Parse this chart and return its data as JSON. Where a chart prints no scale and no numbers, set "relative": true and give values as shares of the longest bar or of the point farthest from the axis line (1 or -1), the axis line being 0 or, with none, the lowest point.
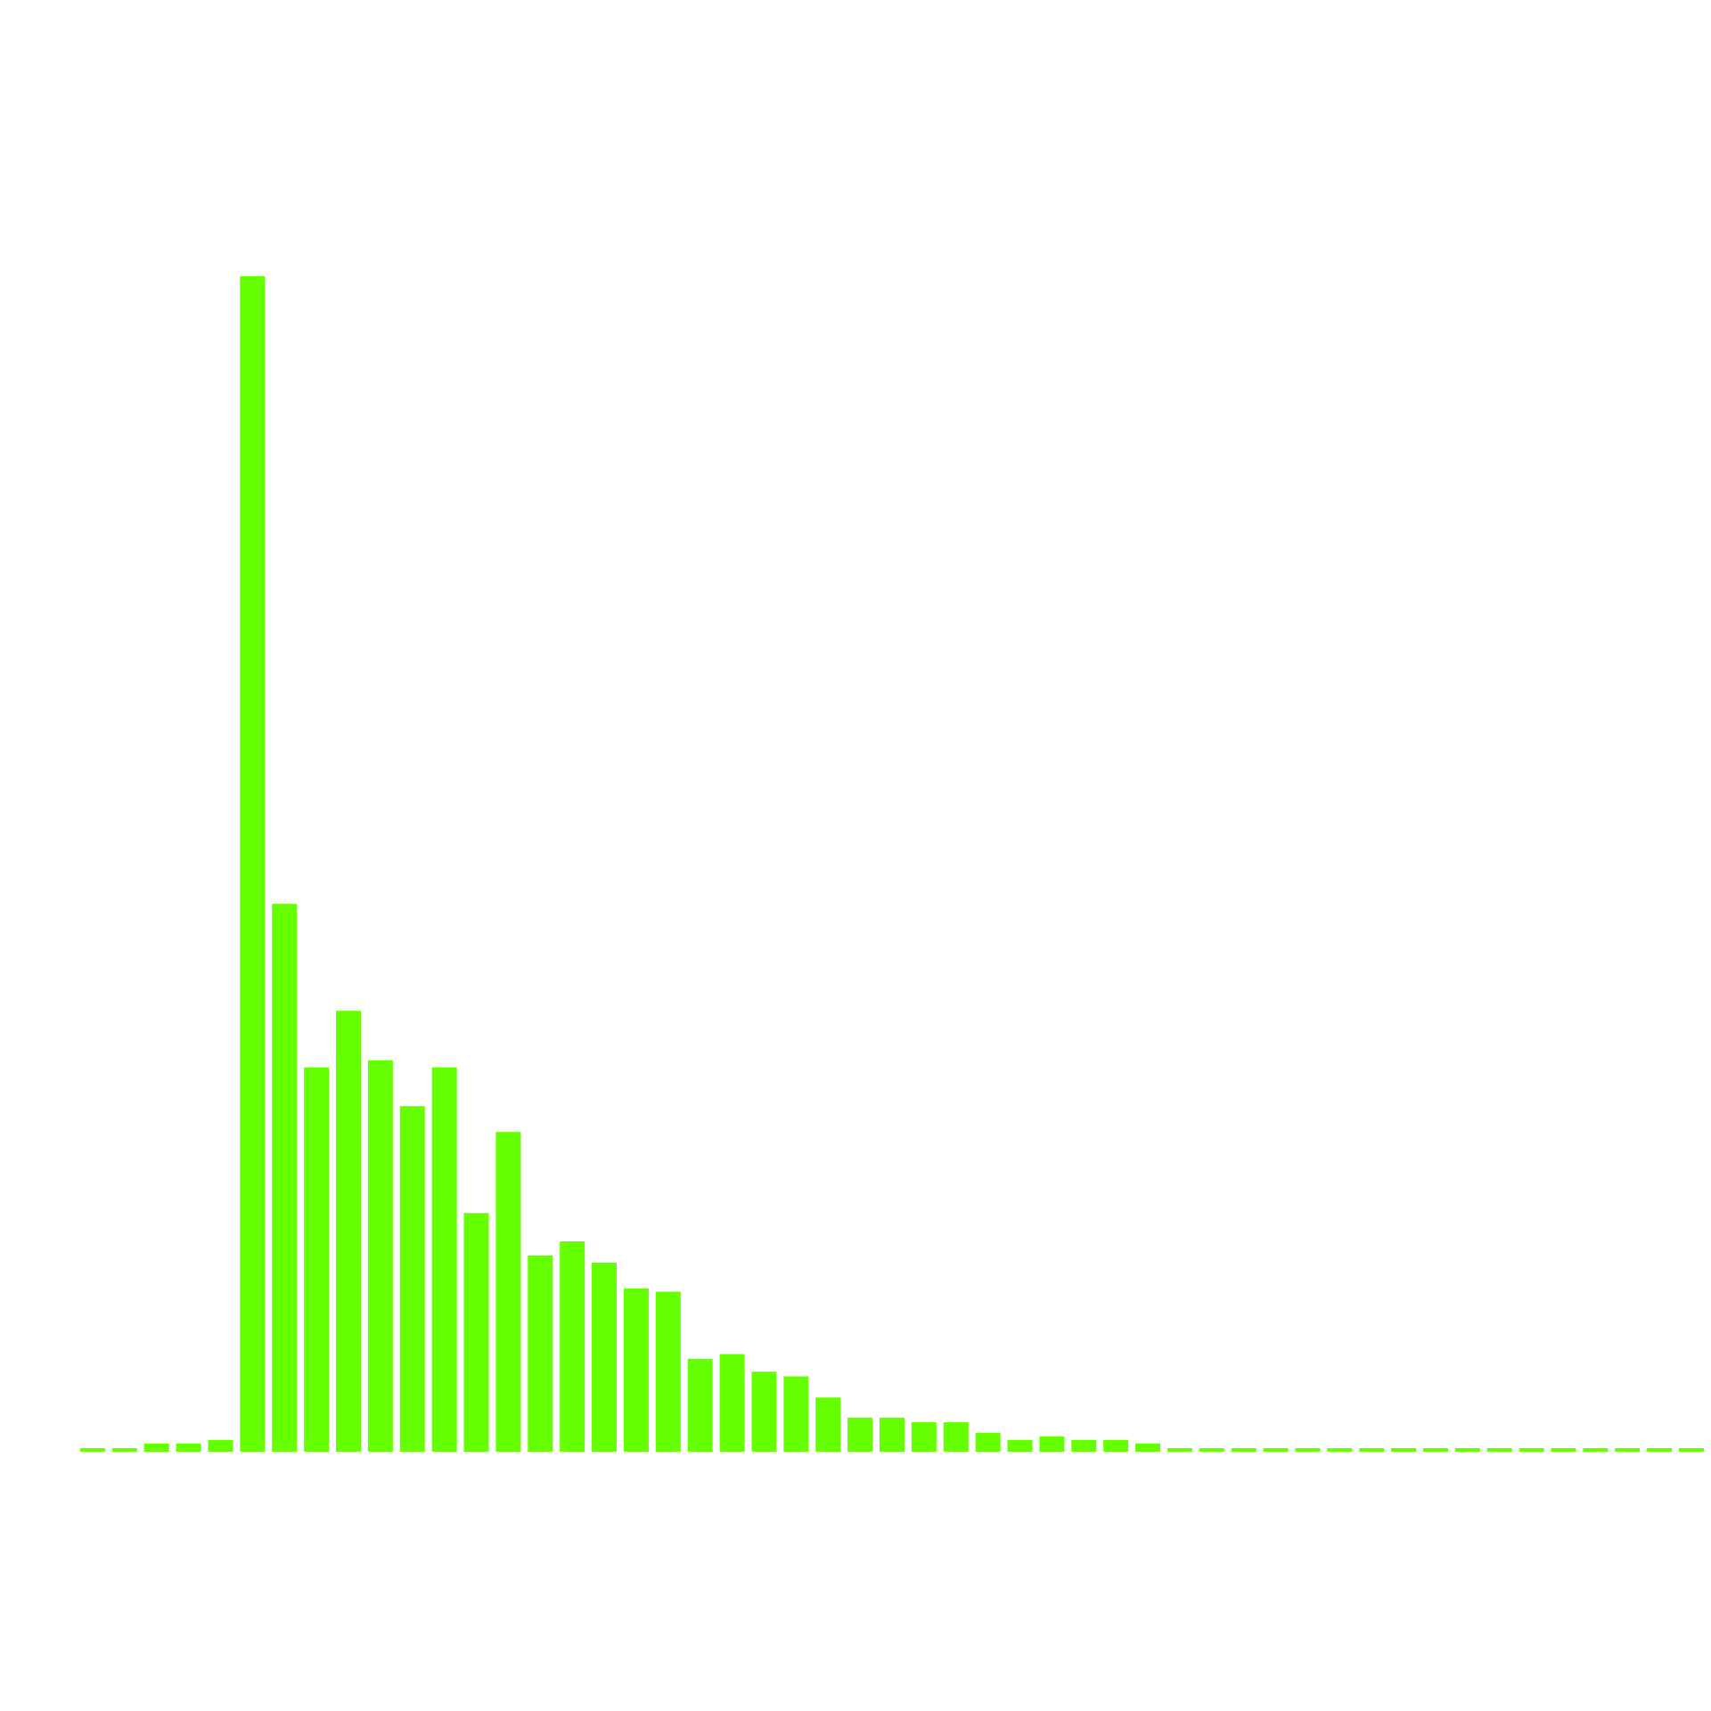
{
  "chart_data": {
    "type": "bar",
    "relative": true,
    "color": "#66ff00",
    "categories": [
      null,
      null,
      null,
      null,
      null,
      null,
      null,
      null,
      null,
      null,
      null,
      null,
      null,
      null,
      null,
      null,
      null,
      null,
      null,
      null,
      null,
      null,
      null,
      null,
      null,
      null,
      null,
      null,
      null,
      null,
      null,
      null,
      null,
      null,
      null,
      null,
      null,
      null,
      null,
      null,
      null,
      null,
      null,
      null,
      null,
      null,
      null,
      null,
      null,
      null,
      null
    ],
    "values": [
      0.003,
      0.003,
      0.007,
      0.007,
      0.01,
      1.0,
      0.466,
      0.327,
      0.375,
      0.333,
      0.294,
      0.327,
      0.203,
      0.272,
      0.167,
      0.179,
      0.161,
      0.139,
      0.136,
      0.079,
      0.083,
      0.068,
      0.064,
      0.046,
      0.029,
      0.029,
      0.025,
      0.025,
      0.016,
      0.01,
      0.013,
      0.01,
      0.01,
      0.007,
      0.003,
      0.003,
      0.003,
      0.003,
      0.003,
      0.003,
      0.003,
      0.003,
      0.003,
      0.003,
      0.003,
      0.003,
      0.003,
      0.003,
      0.003,
      0.003,
      0.003
    ]
  }
}
